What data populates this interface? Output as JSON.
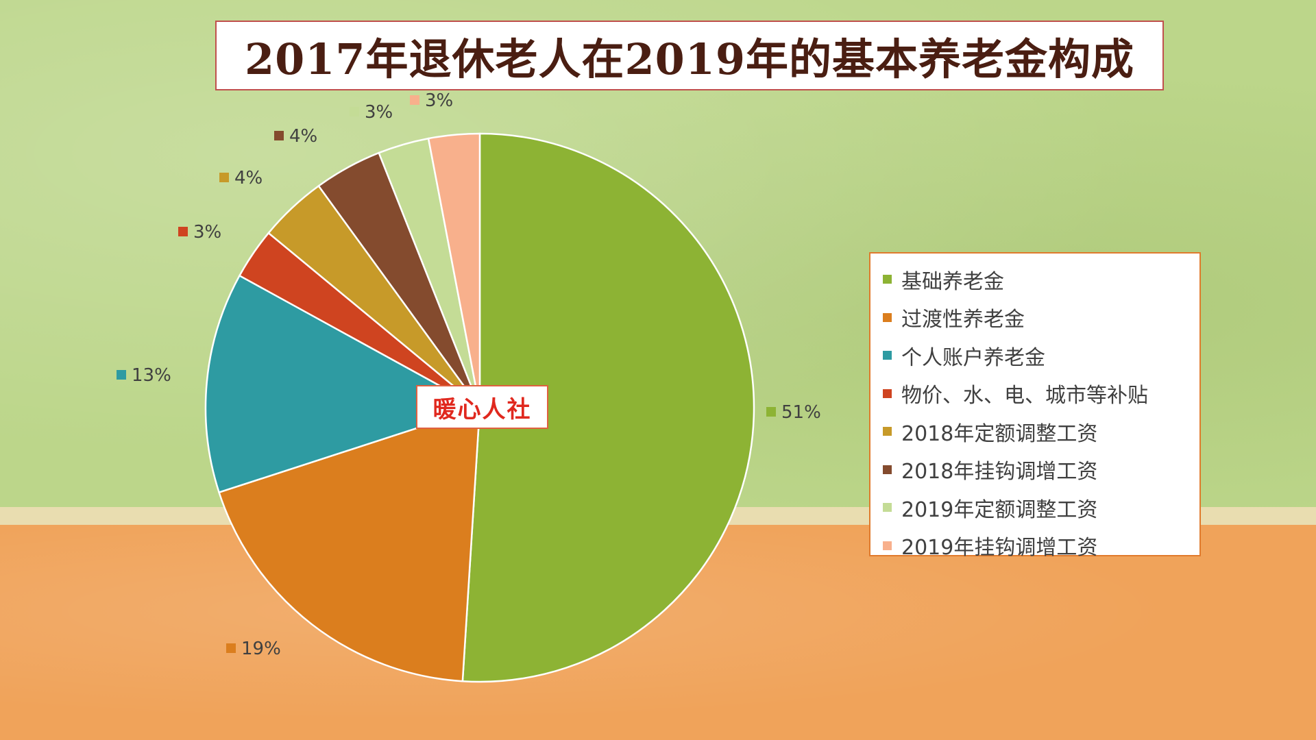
{
  "title": "2017年退休老人在2019年的基本养老金构成",
  "watermark": "暖心人社",
  "chart_data": {
    "type": "pie",
    "title": "2017年退休老人在2019年的基本养老金构成",
    "legend_position": "right",
    "slices": [
      {
        "name": "基础养老金",
        "value": 51,
        "label": "51%",
        "color": "#8db334"
      },
      {
        "name": "过渡性养老金",
        "value": 19,
        "label": "19%",
        "color": "#db7e1e"
      },
      {
        "name": "个人账户养老金",
        "value": 13,
        "label": "13%",
        "color": "#2e9ba2"
      },
      {
        "name": "物价、水、电、城市等补贴",
        "value": 3,
        "label": "3%",
        "color": "#cf4420"
      },
      {
        "name": "2018年定额调整工资",
        "value": 4,
        "label": "4%",
        "color": "#c79a29"
      },
      {
        "name": "2018年挂钩调增工资",
        "value": 4,
        "label": "4%",
        "color": "#844b2e"
      },
      {
        "name": "2019年定额调整工资",
        "value": 3,
        "label": "3%",
        "color": "#c4dc96"
      },
      {
        "name": "2019年挂钩调增工资",
        "value": 3,
        "label": "3%",
        "color": "#f8b08c"
      }
    ]
  }
}
